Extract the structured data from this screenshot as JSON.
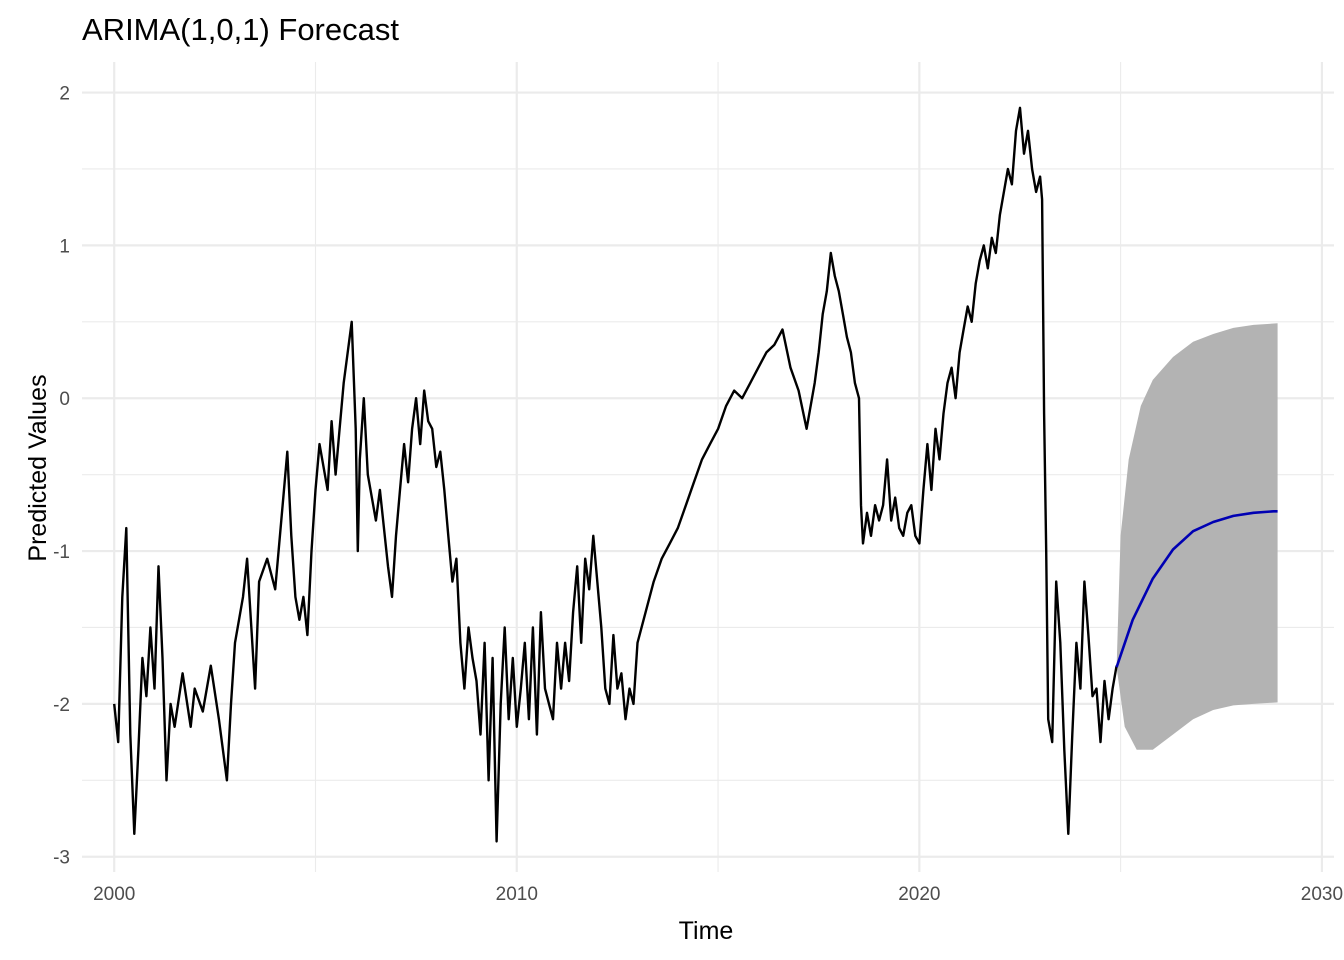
{
  "chart_data": {
    "type": "line",
    "title": "ARIMA(1,0,1) Forecast",
    "xlabel": "Time",
    "ylabel": "Predicted Values",
    "xlim": [
      1999.2,
      2030.3
    ],
    "ylim": [
      -3.1,
      2.2
    ],
    "x_ticks": [
      2000,
      2010,
      2020,
      2030
    ],
    "y_ticks": [
      -3,
      -2,
      -1,
      0,
      1,
      2
    ],
    "x_tick_labels": [
      "2000",
      "2010",
      "2020",
      "2030"
    ],
    "y_tick_labels": [
      "-3",
      "-2",
      "-1",
      "0",
      "1",
      "2"
    ],
    "grid": true,
    "legend": "none",
    "colors": {
      "observed": "#000000",
      "forecast": "#0000b3",
      "interval": "#b3b3b3"
    },
    "series": [
      {
        "kind": "observed",
        "points": [
          [
            2000.0,
            -2.0
          ],
          [
            2000.1,
            -2.25
          ],
          [
            2000.2,
            -1.3
          ],
          [
            2000.3,
            -0.85
          ],
          [
            2000.4,
            -2.2
          ],
          [
            2000.5,
            -2.85
          ],
          [
            2000.6,
            -2.3
          ],
          [
            2000.7,
            -1.7
          ],
          [
            2000.8,
            -1.95
          ],
          [
            2000.9,
            -1.5
          ],
          [
            2001.0,
            -1.9
          ],
          [
            2001.1,
            -1.1
          ],
          [
            2001.2,
            -1.7
          ],
          [
            2001.3,
            -2.5
          ],
          [
            2001.4,
            -2.0
          ],
          [
            2001.5,
            -2.15
          ],
          [
            2001.7,
            -1.8
          ],
          [
            2001.9,
            -2.15
          ],
          [
            2002.0,
            -1.9
          ],
          [
            2002.2,
            -2.05
          ],
          [
            2002.4,
            -1.75
          ],
          [
            2002.6,
            -2.1
          ],
          [
            2002.8,
            -2.5
          ],
          [
            2002.9,
            -2.0
          ],
          [
            2003.0,
            -1.6
          ],
          [
            2003.2,
            -1.3
          ],
          [
            2003.3,
            -1.05
          ],
          [
            2003.5,
            -1.9
          ],
          [
            2003.6,
            -1.2
          ],
          [
            2003.8,
            -1.05
          ],
          [
            2004.0,
            -1.25
          ],
          [
            2004.2,
            -0.65
          ],
          [
            2004.3,
            -0.35
          ],
          [
            2004.4,
            -0.9
          ],
          [
            2004.5,
            -1.3
          ],
          [
            2004.6,
            -1.45
          ],
          [
            2004.7,
            -1.3
          ],
          [
            2004.8,
            -1.55
          ],
          [
            2004.9,
            -1.0
          ],
          [
            2005.0,
            -0.6
          ],
          [
            2005.1,
            -0.3
          ],
          [
            2005.3,
            -0.6
          ],
          [
            2005.4,
            -0.15
          ],
          [
            2005.5,
            -0.5
          ],
          [
            2005.6,
            -0.2
          ],
          [
            2005.7,
            0.1
          ],
          [
            2005.8,
            0.3
          ],
          [
            2005.9,
            0.5
          ],
          [
            2006.0,
            -0.2
          ],
          [
            2006.05,
            -1.0
          ],
          [
            2006.1,
            -0.4
          ],
          [
            2006.2,
            0.0
          ],
          [
            2006.3,
            -0.5
          ],
          [
            2006.5,
            -0.8
          ],
          [
            2006.6,
            -0.6
          ],
          [
            2006.8,
            -1.1
          ],
          [
            2006.9,
            -1.3
          ],
          [
            2007.0,
            -0.9
          ],
          [
            2007.1,
            -0.6
          ],
          [
            2007.2,
            -0.3
          ],
          [
            2007.3,
            -0.55
          ],
          [
            2007.4,
            -0.2
          ],
          [
            2007.5,
            0.0
          ],
          [
            2007.6,
            -0.3
          ],
          [
            2007.7,
            0.05
          ],
          [
            2007.8,
            -0.15
          ],
          [
            2007.9,
            -0.2
          ],
          [
            2008.0,
            -0.45
          ],
          [
            2008.1,
            -0.35
          ],
          [
            2008.2,
            -0.6
          ],
          [
            2008.3,
            -0.9
          ],
          [
            2008.4,
            -1.2
          ],
          [
            2008.5,
            -1.05
          ],
          [
            2008.6,
            -1.6
          ],
          [
            2008.7,
            -1.9
          ],
          [
            2008.8,
            -1.5
          ],
          [
            2008.9,
            -1.7
          ],
          [
            2009.0,
            -1.85
          ],
          [
            2009.1,
            -2.2
          ],
          [
            2009.2,
            -1.6
          ],
          [
            2009.3,
            -2.5
          ],
          [
            2009.4,
            -1.7
          ],
          [
            2009.5,
            -2.9
          ],
          [
            2009.6,
            -2.0
          ],
          [
            2009.7,
            -1.5
          ],
          [
            2009.8,
            -2.1
          ],
          [
            2009.9,
            -1.7
          ],
          [
            2010.0,
            -2.15
          ],
          [
            2010.1,
            -1.9
          ],
          [
            2010.2,
            -1.6
          ],
          [
            2010.3,
            -2.1
          ],
          [
            2010.4,
            -1.5
          ],
          [
            2010.5,
            -2.2
          ],
          [
            2010.6,
            -1.4
          ],
          [
            2010.7,
            -1.9
          ],
          [
            2010.8,
            -2.0
          ],
          [
            2010.9,
            -2.1
          ],
          [
            2011.0,
            -1.6
          ],
          [
            2011.1,
            -1.9
          ],
          [
            2011.2,
            -1.6
          ],
          [
            2011.3,
            -1.85
          ],
          [
            2011.4,
            -1.4
          ],
          [
            2011.5,
            -1.1
          ],
          [
            2011.6,
            -1.6
          ],
          [
            2011.7,
            -1.05
          ],
          [
            2011.8,
            -1.25
          ],
          [
            2011.9,
            -0.9
          ],
          [
            2012.0,
            -1.2
          ],
          [
            2012.1,
            -1.5
          ],
          [
            2012.2,
            -1.9
          ],
          [
            2012.3,
            -2.0
          ],
          [
            2012.4,
            -1.55
          ],
          [
            2012.5,
            -1.9
          ],
          [
            2012.6,
            -1.8
          ],
          [
            2012.7,
            -2.1
          ],
          [
            2012.8,
            -1.9
          ],
          [
            2012.9,
            -2.0
          ],
          [
            2013.0,
            -1.6
          ],
          [
            2013.2,
            -1.4
          ],
          [
            2013.4,
            -1.2
          ],
          [
            2013.6,
            -1.05
          ],
          [
            2013.8,
            -0.95
          ],
          [
            2014.0,
            -0.85
          ],
          [
            2014.2,
            -0.7
          ],
          [
            2014.4,
            -0.55
          ],
          [
            2014.6,
            -0.4
          ],
          [
            2014.8,
            -0.3
          ],
          [
            2015.0,
            -0.2
          ],
          [
            2015.2,
            -0.05
          ],
          [
            2015.4,
            0.05
          ],
          [
            2015.6,
            0.0
          ],
          [
            2015.8,
            0.1
          ],
          [
            2016.0,
            0.2
          ],
          [
            2016.2,
            0.3
          ],
          [
            2016.4,
            0.35
          ],
          [
            2016.6,
            0.45
          ],
          [
            2016.8,
            0.2
          ],
          [
            2017.0,
            0.05
          ],
          [
            2017.2,
            -0.2
          ],
          [
            2017.4,
            0.1
          ],
          [
            2017.5,
            0.3
          ],
          [
            2017.6,
            0.55
          ],
          [
            2017.7,
            0.7
          ],
          [
            2017.8,
            0.95
          ],
          [
            2017.9,
            0.8
          ],
          [
            2018.0,
            0.7
          ],
          [
            2018.1,
            0.55
          ],
          [
            2018.2,
            0.4
          ],
          [
            2018.3,
            0.3
          ],
          [
            2018.4,
            0.1
          ],
          [
            2018.5,
            0.0
          ],
          [
            2018.55,
            -0.7
          ],
          [
            2018.6,
            -0.95
          ],
          [
            2018.7,
            -0.75
          ],
          [
            2018.8,
            -0.9
          ],
          [
            2018.9,
            -0.7
          ],
          [
            2019.0,
            -0.8
          ],
          [
            2019.1,
            -0.7
          ],
          [
            2019.2,
            -0.4
          ],
          [
            2019.3,
            -0.8
          ],
          [
            2019.4,
            -0.65
          ],
          [
            2019.5,
            -0.85
          ],
          [
            2019.6,
            -0.9
          ],
          [
            2019.7,
            -0.75
          ],
          [
            2019.8,
            -0.7
          ],
          [
            2019.9,
            -0.9
          ],
          [
            2020.0,
            -0.95
          ],
          [
            2020.1,
            -0.6
          ],
          [
            2020.2,
            -0.3
          ],
          [
            2020.3,
            -0.6
          ],
          [
            2020.4,
            -0.2
          ],
          [
            2020.5,
            -0.4
          ],
          [
            2020.6,
            -0.1
          ],
          [
            2020.7,
            0.1
          ],
          [
            2020.8,
            0.2
          ],
          [
            2020.9,
            0.0
          ],
          [
            2021.0,
            0.3
          ],
          [
            2021.1,
            0.45
          ],
          [
            2021.2,
            0.6
          ],
          [
            2021.3,
            0.5
          ],
          [
            2021.4,
            0.75
          ],
          [
            2021.5,
            0.9
          ],
          [
            2021.6,
            1.0
          ],
          [
            2021.7,
            0.85
          ],
          [
            2021.8,
            1.05
          ],
          [
            2021.9,
            0.95
          ],
          [
            2022.0,
            1.2
          ],
          [
            2022.1,
            1.35
          ],
          [
            2022.2,
            1.5
          ],
          [
            2022.3,
            1.4
          ],
          [
            2022.4,
            1.75
          ],
          [
            2022.5,
            1.9
          ],
          [
            2022.6,
            1.6
          ],
          [
            2022.7,
            1.75
          ],
          [
            2022.8,
            1.5
          ],
          [
            2022.9,
            1.35
          ],
          [
            2023.0,
            1.45
          ],
          [
            2023.05,
            1.3
          ],
          [
            2023.1,
            -0.1
          ],
          [
            2023.15,
            -1.0
          ],
          [
            2023.2,
            -2.1
          ],
          [
            2023.3,
            -2.25
          ],
          [
            2023.4,
            -1.2
          ],
          [
            2023.5,
            -1.6
          ],
          [
            2023.6,
            -2.3
          ],
          [
            2023.7,
            -2.85
          ],
          [
            2023.8,
            -2.2
          ],
          [
            2023.9,
            -1.6
          ],
          [
            2024.0,
            -1.9
          ],
          [
            2024.1,
            -1.2
          ],
          [
            2024.2,
            -1.55
          ],
          [
            2024.3,
            -1.95
          ],
          [
            2024.4,
            -1.9
          ],
          [
            2024.5,
            -2.25
          ],
          [
            2024.6,
            -1.85
          ],
          [
            2024.7,
            -2.1
          ],
          [
            2024.8,
            -1.9
          ],
          [
            2024.9,
            -1.75
          ]
        ]
      },
      {
        "kind": "forecast",
        "points": [
          [
            2024.9,
            -1.76
          ],
          [
            2025.3,
            -1.45
          ],
          [
            2025.8,
            -1.18
          ],
          [
            2026.3,
            -0.99
          ],
          [
            2026.8,
            -0.87
          ],
          [
            2027.3,
            -0.81
          ],
          [
            2027.8,
            -0.77
          ],
          [
            2028.3,
            -0.75
          ],
          [
            2028.8,
            -0.74
          ],
          [
            2028.9,
            -0.74
          ]
        ]
      }
    ],
    "interval": {
      "upper": [
        [
          2024.9,
          -1.76
        ],
        [
          2025.0,
          -0.9
        ],
        [
          2025.2,
          -0.4
        ],
        [
          2025.5,
          -0.05
        ],
        [
          2025.8,
          0.12
        ],
        [
          2026.3,
          0.27
        ],
        [
          2026.8,
          0.37
        ],
        [
          2027.3,
          0.42
        ],
        [
          2027.8,
          0.46
        ],
        [
          2028.3,
          0.48
        ],
        [
          2028.9,
          0.49
        ]
      ],
      "lower": [
        [
          2024.9,
          -1.76
        ],
        [
          2025.1,
          -2.15
        ],
        [
          2025.4,
          -2.3
        ],
        [
          2025.8,
          -2.3
        ],
        [
          2026.3,
          -2.2
        ],
        [
          2026.8,
          -2.1
        ],
        [
          2027.3,
          -2.04
        ],
        [
          2027.8,
          -2.01
        ],
        [
          2028.3,
          -2.0
        ],
        [
          2028.9,
          -1.99
        ]
      ]
    }
  }
}
